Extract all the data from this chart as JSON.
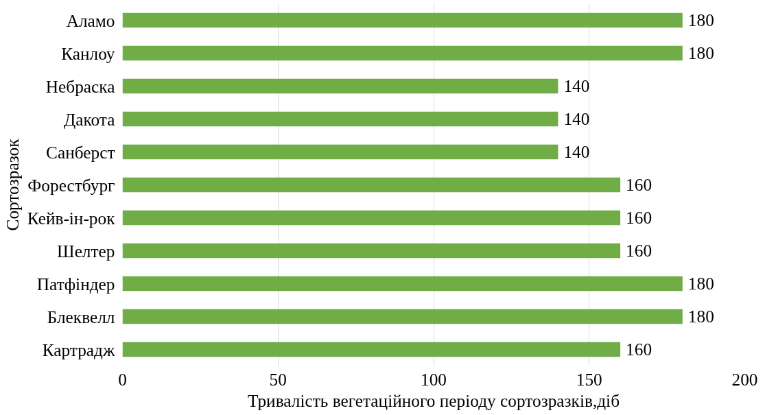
{
  "chart_data": {
    "type": "bar",
    "orientation": "horizontal",
    "ylabel": "Сортозразок",
    "xlabel": "Тривалість вегетаційного періоду сортозразків,діб",
    "categories": [
      "Аламо",
      "Канлоу",
      "Небраска",
      "Дакота",
      "Санберст",
      "Форестбург",
      "Кейв-ін-рок",
      "Шелтер",
      "Патфіндер",
      "Блеквелл",
      "Картрадж"
    ],
    "values": [
      180,
      180,
      140,
      140,
      140,
      160,
      160,
      160,
      180,
      180,
      160
    ],
    "color": "#70ad47",
    "xlim": [
      0,
      200
    ],
    "xticks": [
      0,
      50,
      100,
      150,
      200
    ],
    "grid": "x",
    "data_labels": true
  }
}
